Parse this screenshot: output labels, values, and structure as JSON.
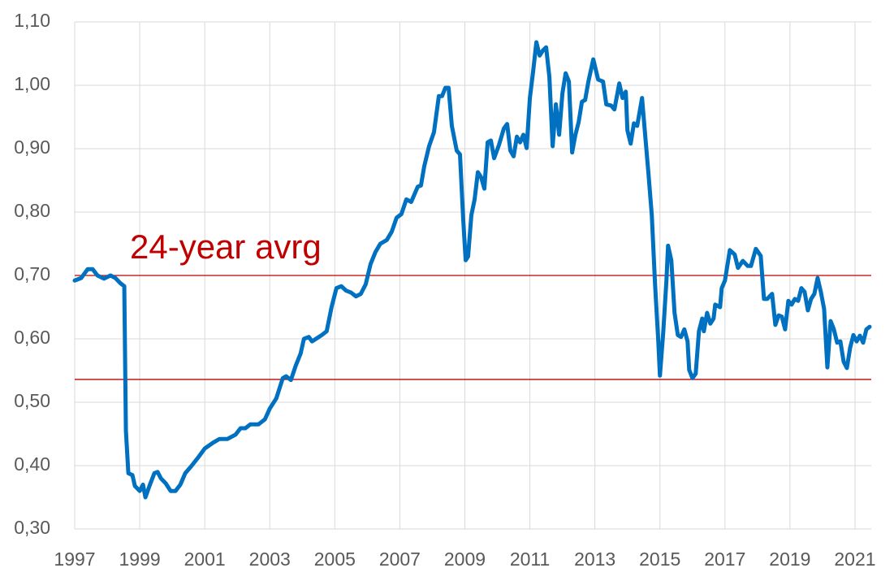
{
  "chart_data": {
    "type": "line",
    "annotation": "24-year avrg",
    "color": "#0070c0",
    "reference_lines": [
      0.7,
      0.536
    ],
    "reference_color": "#c00000",
    "grid": true,
    "xlim": [
      1997,
      2021.5
    ],
    "xticks": [
      1997,
      1999,
      2001,
      2003,
      2005,
      2007,
      2009,
      2011,
      2013,
      2015,
      2017,
      2019,
      2021
    ],
    "ylim": [
      0.3,
      1.1
    ],
    "yticks": [
      {
        "value": 0.3,
        "label": "0,30"
      },
      {
        "value": 0.4,
        "label": "0,40"
      },
      {
        "value": 0.5,
        "label": "0,50"
      },
      {
        "value": 0.6,
        "label": "0,60"
      },
      {
        "value": 0.7,
        "label": "0,70"
      },
      {
        "value": 0.8,
        "label": "0,80"
      },
      {
        "value": 0.9,
        "label": "0,90"
      },
      {
        "value": 1.0,
        "label": "1,00"
      },
      {
        "value": 1.1,
        "label": "1,10"
      }
    ],
    "x": [
      1997.0,
      1997.2,
      1997.4,
      1997.55,
      1997.7,
      1997.9,
      1998.1,
      1998.25,
      1998.4,
      1998.525,
      1998.575,
      1998.65,
      1998.775,
      1998.85,
      1999.0,
      1999.1,
      1999.175,
      1999.3,
      1999.45,
      1999.55,
      1999.65,
      1999.8,
      1999.95,
      2000.1,
      2000.25,
      2000.4,
      2000.6,
      2000.8,
      2001.0,
      2001.25,
      2001.45,
      2001.7,
      2001.95,
      2002.1,
      2002.25,
      2002.4,
      2002.65,
      2002.85,
      2003.0,
      2003.2,
      2003.4,
      2003.5,
      2003.65,
      2003.8,
      2003.95,
      2004.05,
      2004.2,
      2004.3,
      2004.45,
      2004.6,
      2004.75,
      2004.9,
      2005.05,
      2005.2,
      2005.35,
      2005.5,
      2005.65,
      2005.8,
      2005.95,
      2006.1,
      2006.25,
      2006.4,
      2006.6,
      2006.75,
      2006.9,
      2007.05,
      2007.2,
      2007.35,
      2007.55,
      2007.65,
      2007.75,
      2007.9,
      2008.05,
      2008.2,
      2008.3,
      2008.4,
      2008.5,
      2008.6,
      2008.75,
      2008.85,
      2008.95,
      2009.025,
      2009.1,
      2009.2,
      2009.3,
      2009.4,
      2009.5,
      2009.6,
      2009.7,
      2009.8,
      2009.9,
      2010.05,
      2010.2,
      2010.3,
      2010.4,
      2010.5,
      2010.6,
      2010.7,
      2010.8,
      2010.9,
      2011.0,
      2011.1,
      2011.2,
      2011.3,
      2011.4,
      2011.5,
      2011.6,
      2011.7,
      2011.8,
      2011.9,
      2012.0,
      2012.1,
      2012.2,
      2012.3,
      2012.4,
      2012.5,
      2012.6,
      2012.7,
      2012.8,
      2012.95,
      2013.1,
      2013.25,
      2013.35,
      2013.5,
      2013.6,
      2013.75,
      2013.85,
      2013.95,
      2014.0,
      2014.1,
      2014.2,
      2014.3,
      2014.45,
      2014.55,
      2014.65,
      2014.75,
      2014.85,
      2014.95,
      2015.0,
      2015.1,
      2015.2,
      2015.25,
      2015.35,
      2015.45,
      2015.55,
      2015.65,
      2015.75,
      2015.85,
      2015.9,
      2016.0,
      2016.1,
      2016.2,
      2016.3,
      2016.35,
      2016.45,
      2016.55,
      2016.65,
      2016.7,
      2016.85,
      2016.9,
      2017.0,
      2017.15,
      2017.3,
      2017.4,
      2017.55,
      2017.7,
      2017.8,
      2017.95,
      2018.1,
      2018.2,
      2018.3,
      2018.45,
      2018.55,
      2018.65,
      2018.75,
      2018.85,
      2018.95,
      2019.05,
      2019.15,
      2019.25,
      2019.35,
      2019.45,
      2019.55,
      2019.65,
      2019.75,
      2019.85,
      2019.95,
      2020.05,
      2020.15,
      2020.25,
      2020.35,
      2020.45,
      2020.55,
      2020.65,
      2020.75,
      2020.85,
      2020.95,
      2021.05,
      2021.15,
      2021.25,
      2021.35,
      2021.45
    ],
    "values": [
      0.692,
      0.696,
      0.71,
      0.71,
      0.7,
      0.695,
      0.7,
      0.696,
      0.688,
      0.683,
      0.455,
      0.388,
      0.385,
      0.368,
      0.36,
      0.37,
      0.35,
      0.368,
      0.388,
      0.39,
      0.38,
      0.372,
      0.36,
      0.36,
      0.37,
      0.388,
      0.4,
      0.413,
      0.427,
      0.436,
      0.442,
      0.442,
      0.449,
      0.459,
      0.459,
      0.465,
      0.465,
      0.473,
      0.49,
      0.506,
      0.538,
      0.541,
      0.535,
      0.558,
      0.577,
      0.6,
      0.603,
      0.596,
      0.601,
      0.606,
      0.612,
      0.65,
      0.68,
      0.683,
      0.676,
      0.673,
      0.667,
      0.671,
      0.686,
      0.718,
      0.737,
      0.75,
      0.756,
      0.769,
      0.791,
      0.797,
      0.82,
      0.816,
      0.84,
      0.842,
      0.872,
      0.904,
      0.926,
      0.983,
      0.983,
      0.996,
      0.996,
      0.936,
      0.897,
      0.891,
      0.788,
      0.724,
      0.73,
      0.795,
      0.82,
      0.863,
      0.855,
      0.837,
      0.91,
      0.913,
      0.885,
      0.906,
      0.932,
      0.939,
      0.897,
      0.888,
      0.919,
      0.91,
      0.922,
      0.901,
      0.98,
      1.022,
      1.068,
      1.047,
      1.055,
      1.06,
      1.013,
      0.904,
      0.97,
      0.922,
      0.987,
      1.019,
      1.006,
      0.894,
      0.922,
      0.942,
      0.974,
      0.977,
      1.006,
      1.041,
      1.009,
      1.006,
      0.97,
      0.968,
      0.962,
      1.003,
      0.98,
      0.99,
      0.929,
      0.908,
      0.94,
      0.936,
      0.98,
      0.919,
      0.859,
      0.795,
      0.686,
      0.596,
      0.542,
      0.609,
      0.692,
      0.747,
      0.724,
      0.641,
      0.606,
      0.603,
      0.615,
      0.596,
      0.551,
      0.538,
      0.545,
      0.612,
      0.632,
      0.612,
      0.641,
      0.624,
      0.632,
      0.654,
      0.65,
      0.68,
      0.692,
      0.74,
      0.733,
      0.712,
      0.723,
      0.715,
      0.715,
      0.742,
      0.731,
      0.663,
      0.663,
      0.671,
      0.622,
      0.637,
      0.635,
      0.615,
      0.66,
      0.654,
      0.663,
      0.66,
      0.68,
      0.674,
      0.645,
      0.663,
      0.671,
      0.696,
      0.674,
      0.647,
      0.555,
      0.628,
      0.615,
      0.594,
      0.596,
      0.564,
      0.554,
      0.586,
      0.606,
      0.596,
      0.605,
      0.594,
      0.615,
      0.619
    ]
  }
}
